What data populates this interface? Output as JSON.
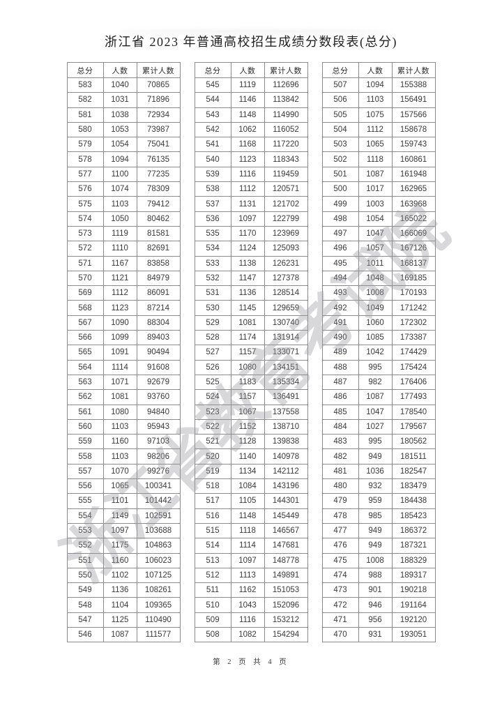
{
  "document": {
    "title": "浙江省 2023 年普通高校招生成绩分数段表(总分)",
    "footer": "第 2 页 共 4 页",
    "watermark": "浙江省教育考试院"
  },
  "table_headers": [
    "总分",
    "人数",
    "累计人数"
  ],
  "tables": [
    {
      "rows": [
        [
          "583",
          "1040",
          "70865"
        ],
        [
          "582",
          "1031",
          "71896"
        ],
        [
          "581",
          "1038",
          "72934"
        ],
        [
          "580",
          "1053",
          "73987"
        ],
        [
          "579",
          "1054",
          "75041"
        ],
        [
          "578",
          "1094",
          "76135"
        ],
        [
          "577",
          "1100",
          "77235"
        ],
        [
          "576",
          "1074",
          "78309"
        ],
        [
          "575",
          "1103",
          "79412"
        ],
        [
          "574",
          "1050",
          "80462"
        ],
        [
          "573",
          "1119",
          "81581"
        ],
        [
          "572",
          "1110",
          "82691"
        ],
        [
          "571",
          "1167",
          "83858"
        ],
        [
          "570",
          "1121",
          "84979"
        ],
        [
          "569",
          "1112",
          "86091"
        ],
        [
          "568",
          "1123",
          "87214"
        ],
        [
          "567",
          "1090",
          "88304"
        ],
        [
          "566",
          "1099",
          "89403"
        ],
        [
          "565",
          "1091",
          "90494"
        ],
        [
          "564",
          "1114",
          "91608"
        ],
        [
          "563",
          "1071",
          "92679"
        ],
        [
          "562",
          "1081",
          "93760"
        ],
        [
          "561",
          "1080",
          "94840"
        ],
        [
          "560",
          "1103",
          "95943"
        ],
        [
          "559",
          "1160",
          "97103"
        ],
        [
          "558",
          "1103",
          "98206"
        ],
        [
          "557",
          "1070",
          "99276"
        ],
        [
          "556",
          "1065",
          "100341"
        ],
        [
          "555",
          "1101",
          "101442"
        ],
        [
          "554",
          "1149",
          "102591"
        ],
        [
          "553",
          "1097",
          "103688"
        ],
        [
          "552",
          "1175",
          "104863"
        ],
        [
          "551",
          "1160",
          "106023"
        ],
        [
          "550",
          "1102",
          "107125"
        ],
        [
          "549",
          "1136",
          "108261"
        ],
        [
          "548",
          "1104",
          "109365"
        ],
        [
          "547",
          "1125",
          "110490"
        ],
        [
          "546",
          "1087",
          "111577"
        ]
      ]
    },
    {
      "rows": [
        [
          "545",
          "1119",
          "112696"
        ],
        [
          "544",
          "1146",
          "113842"
        ],
        [
          "543",
          "1148",
          "114990"
        ],
        [
          "542",
          "1062",
          "116052"
        ],
        [
          "541",
          "1168",
          "117220"
        ],
        [
          "540",
          "1123",
          "118343"
        ],
        [
          "539",
          "1116",
          "119459"
        ],
        [
          "538",
          "1112",
          "120571"
        ],
        [
          "537",
          "1131",
          "121702"
        ],
        [
          "536",
          "1097",
          "122799"
        ],
        [
          "535",
          "1170",
          "123969"
        ],
        [
          "534",
          "1124",
          "125093"
        ],
        [
          "533",
          "1138",
          "126231"
        ],
        [
          "532",
          "1147",
          "127378"
        ],
        [
          "531",
          "1136",
          "128514"
        ],
        [
          "530",
          "1145",
          "129659"
        ],
        [
          "529",
          "1081",
          "130740"
        ],
        [
          "528",
          "1174",
          "131914"
        ],
        [
          "527",
          "1157",
          "133071"
        ],
        [
          "526",
          "1080",
          "134151"
        ],
        [
          "525",
          "1183",
          "135334"
        ],
        [
          "524",
          "1157",
          "136491"
        ],
        [
          "523",
          "1067",
          "137558"
        ],
        [
          "522",
          "1152",
          "138710"
        ],
        [
          "521",
          "1128",
          "139838"
        ],
        [
          "520",
          "1140",
          "140978"
        ],
        [
          "519",
          "1134",
          "142112"
        ],
        [
          "518",
          "1084",
          "143196"
        ],
        [
          "517",
          "1105",
          "144301"
        ],
        [
          "516",
          "1148",
          "145449"
        ],
        [
          "515",
          "1118",
          "146567"
        ],
        [
          "514",
          "1114",
          "147681"
        ],
        [
          "513",
          "1097",
          "148778"
        ],
        [
          "512",
          "1113",
          "149891"
        ],
        [
          "511",
          "1162",
          "151053"
        ],
        [
          "510",
          "1043",
          "152096"
        ],
        [
          "509",
          "1116",
          "153212"
        ],
        [
          "508",
          "1082",
          "154294"
        ]
      ]
    },
    {
      "rows": [
        [
          "507",
          "1094",
          "155388"
        ],
        [
          "506",
          "1103",
          "156491"
        ],
        [
          "505",
          "1075",
          "157566"
        ],
        [
          "504",
          "1112",
          "158678"
        ],
        [
          "503",
          "1065",
          "159743"
        ],
        [
          "502",
          "1118",
          "160861"
        ],
        [
          "501",
          "1087",
          "161948"
        ],
        [
          "500",
          "1017",
          "162965"
        ],
        [
          "499",
          "1003",
          "163968"
        ],
        [
          "498",
          "1054",
          "165022"
        ],
        [
          "497",
          "1047",
          "166069"
        ],
        [
          "496",
          "1057",
          "167126"
        ],
        [
          "495",
          "1011",
          "168137"
        ],
        [
          "494",
          "1048",
          "169185"
        ],
        [
          "493",
          "1008",
          "170193"
        ],
        [
          "492",
          "1049",
          "171242"
        ],
        [
          "491",
          "1060",
          "172302"
        ],
        [
          "490",
          "1085",
          "173387"
        ],
        [
          "489",
          "1042",
          "174429"
        ],
        [
          "488",
          "995",
          "175424"
        ],
        [
          "487",
          "982",
          "176406"
        ],
        [
          "486",
          "1087",
          "177493"
        ],
        [
          "485",
          "1047",
          "178540"
        ],
        [
          "484",
          "1027",
          "179567"
        ],
        [
          "483",
          "995",
          "180562"
        ],
        [
          "482",
          "949",
          "181511"
        ],
        [
          "481",
          "1036",
          "182547"
        ],
        [
          "480",
          "932",
          "183479"
        ],
        [
          "479",
          "959",
          "184438"
        ],
        [
          "478",
          "985",
          "185423"
        ],
        [
          "477",
          "949",
          "186372"
        ],
        [
          "476",
          "949",
          "187321"
        ],
        [
          "475",
          "1008",
          "188329"
        ],
        [
          "474",
          "988",
          "189317"
        ],
        [
          "473",
          "901",
          "190218"
        ],
        [
          "472",
          "946",
          "191164"
        ],
        [
          "471",
          "956",
          "192120"
        ],
        [
          "470",
          "931",
          "193051"
        ]
      ]
    }
  ]
}
